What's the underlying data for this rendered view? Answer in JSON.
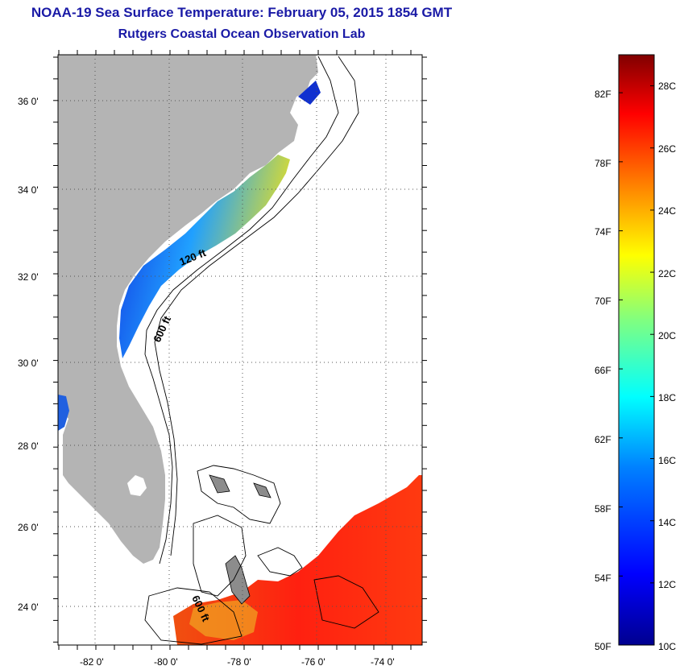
{
  "header": {
    "title": "NOAA-19 Sea Surface Temperature:  February 05, 2015 1854 GMT",
    "subtitle": "Rutgers Coastal Ocean Observation Lab"
  },
  "map": {
    "latitude_labels": [
      "36 0'",
      "34 0'",
      "32 0'",
      "30 0'",
      "28 0'",
      "26 0'",
      "24 0'"
    ],
    "longitude_labels": [
      "-82 0'",
      "-80 0'",
      "-78 0'",
      "-76 0'",
      "-74 0'"
    ],
    "latitude_values": [
      36,
      34,
      32,
      30,
      28,
      26,
      24
    ],
    "longitude_values": [
      -82,
      -80,
      -78,
      -76,
      -74
    ],
    "lat_range": [
      23,
      37
    ],
    "lon_range": [
      -83,
      -73
    ],
    "contour_labels": [
      "120 ft",
      "600 ft",
      "600 ft"
    ],
    "colors": {
      "land": "#b4b4b4",
      "ocean": "#ffffff",
      "grid": "#555555"
    }
  },
  "colorbar": {
    "fahrenheit_labels": [
      "82F",
      "78F",
      "74F",
      "70F",
      "66F",
      "62F",
      "58F",
      "54F",
      "50F"
    ],
    "fahrenheit_values": [
      82,
      78,
      74,
      70,
      66,
      62,
      58,
      54,
      50
    ],
    "celsius_labels": [
      "28C",
      "26C",
      "24C",
      "22C",
      "20C",
      "18C",
      "16C",
      "14C",
      "12C",
      "10C"
    ],
    "celsius_values": [
      28,
      26,
      24,
      22,
      20,
      18,
      16,
      14,
      12,
      10
    ],
    "range_c": [
      10,
      29
    ],
    "gradient_colors": [
      "#00008f",
      "#0000ff",
      "#0080ff",
      "#00ffff",
      "#80ff80",
      "#ffff00",
      "#ff8000",
      "#ff0000",
      "#800000"
    ]
  }
}
